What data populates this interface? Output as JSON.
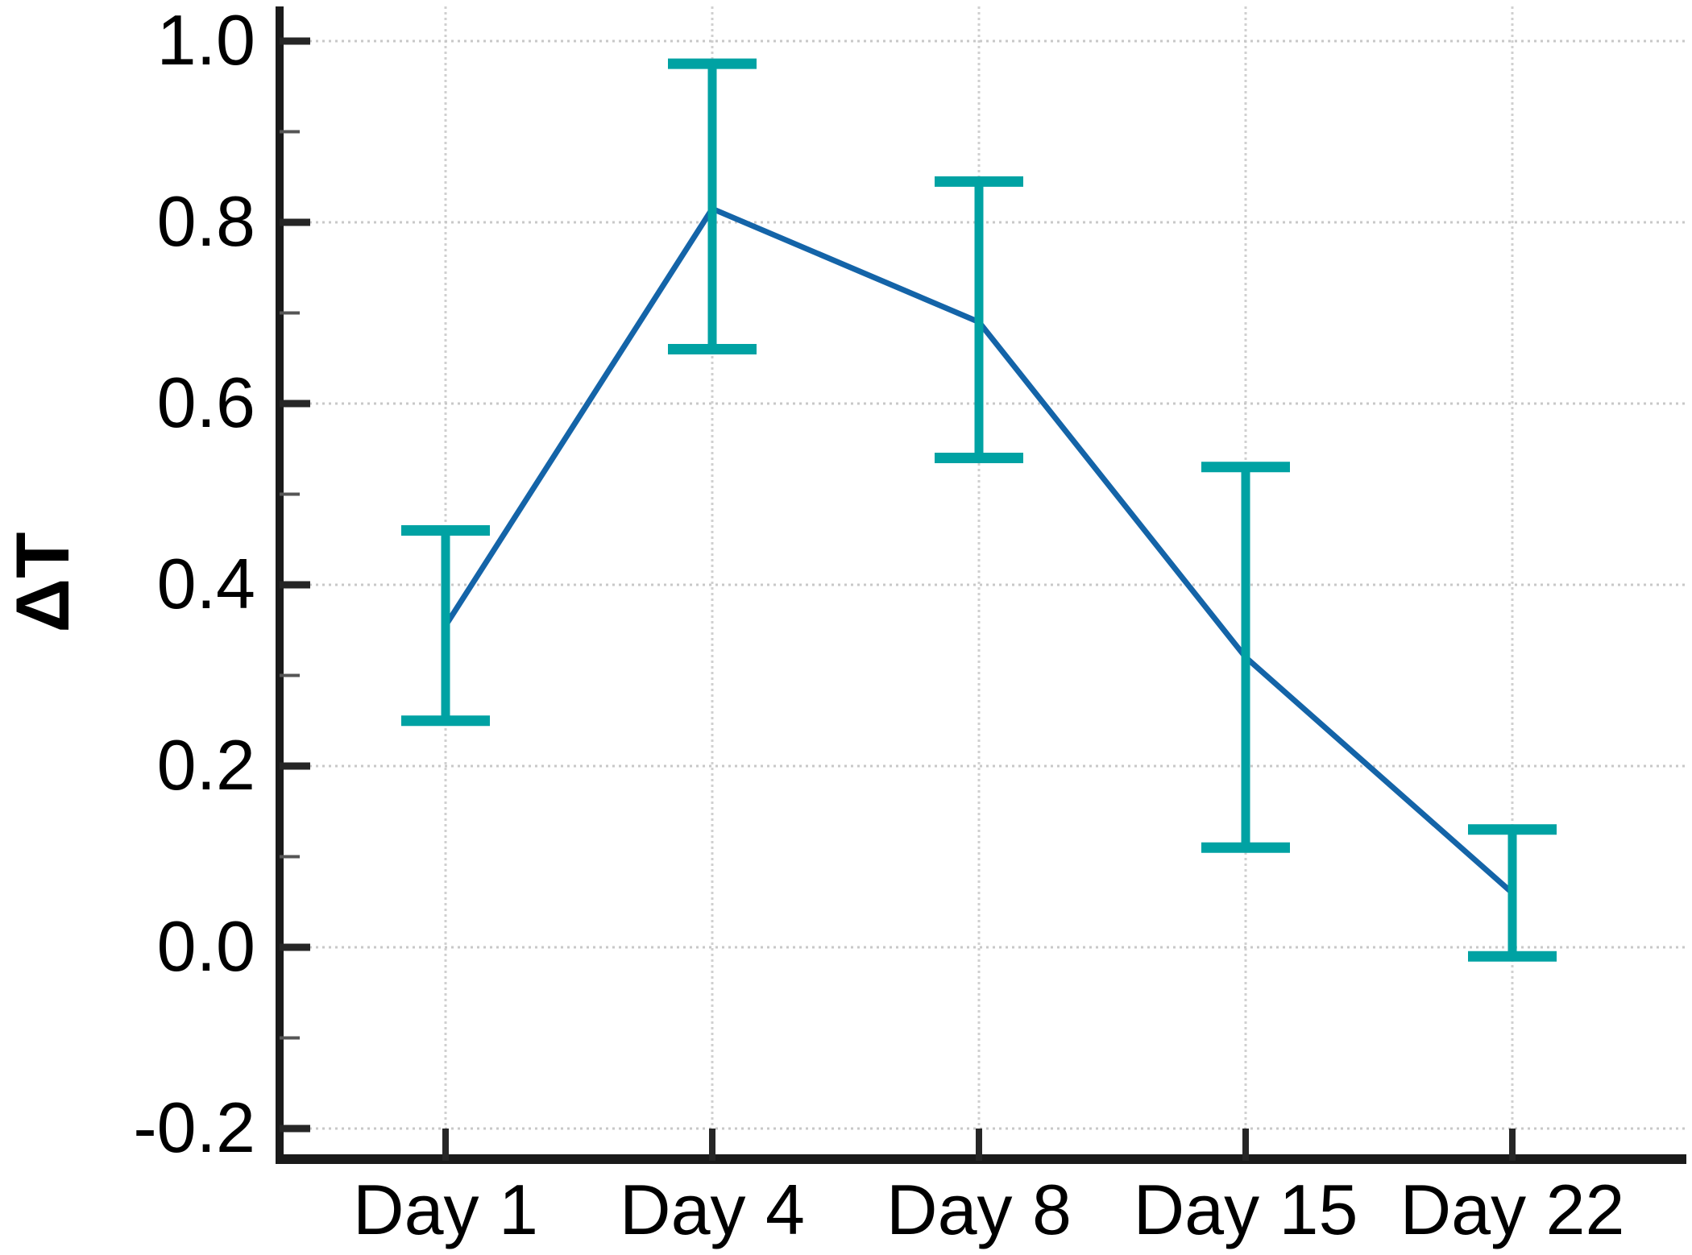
{
  "figure": {
    "title": "",
    "background": "#ffffff"
  },
  "chart_data": {
    "type": "line",
    "categories": [
      "Day 1",
      "Day 4",
      "Day 8",
      "Day 15",
      "Day 22"
    ],
    "series": [
      {
        "name": "ΔT",
        "values": [
          0.355,
          0.815,
          0.69,
          0.32,
          0.06
        ],
        "error_upper": [
          0.46,
          0.975,
          0.845,
          0.53,
          0.13
        ],
        "error_lower": [
          0.25,
          0.66,
          0.54,
          0.11,
          -0.01
        ]
      }
    ],
    "title": "",
    "xlabel": "",
    "ylabel": "ΔT",
    "ylim": [
      -0.234,
      1.036
    ],
    "yticks": [
      1.0,
      0.8,
      0.6,
      0.4,
      0.2,
      0.0,
      -0.2
    ],
    "ytick_labels": [
      "1.0",
      "0.8",
      "0.6",
      "0.4",
      "0.2",
      "0.0",
      "-0.2"
    ],
    "minor_yticks": [
      0.9,
      0.7,
      0.5,
      0.3,
      0.1,
      -0.1
    ],
    "grid": "on",
    "legend": "none",
    "colors": {
      "line": "#1464A8",
      "error_bar": "#00A2A3",
      "grid_horizontal": "#c8c8c8",
      "grid_vertical": "#d0d0d0",
      "axis": "#1a1a1a",
      "major_tick": "#262626",
      "minor_tick": "#555555",
      "text": "#000000"
    }
  }
}
